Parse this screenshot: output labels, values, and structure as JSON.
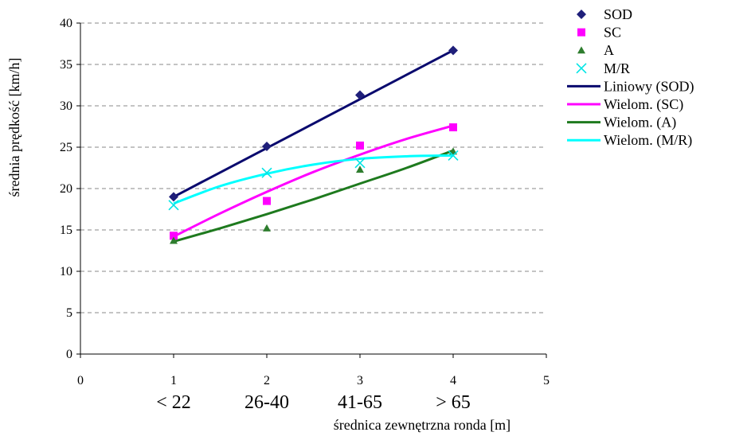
{
  "chart_data": {
    "type": "scatter",
    "xlabel": "średnica zewnętrzna ronda [m]",
    "ylabel": "średnia prędkość [km/h]",
    "xlim": [
      0,
      5
    ],
    "ylim": [
      0,
      40
    ],
    "x_ticks": [
      "0",
      "1",
      "2",
      "3",
      "4",
      "5"
    ],
    "y_ticks": [
      "0",
      "5",
      "10",
      "15",
      "20",
      "25",
      "30",
      "35",
      "40"
    ],
    "category_labels": [
      "< 22",
      "26-40",
      "41-65",
      "> 65"
    ],
    "grid": "horizontal dashed",
    "legend_position": "right",
    "series": [
      {
        "name": "SOD",
        "marker": "diamond",
        "color": "#1F1F7A",
        "x": [
          1,
          2,
          3,
          4
        ],
        "y": [
          19.0,
          25.1,
          31.3,
          36.7
        ]
      },
      {
        "name": "SC",
        "marker": "square",
        "color": "#FF00FF",
        "x": [
          1,
          2,
          3,
          4
        ],
        "y": [
          14.3,
          18.5,
          25.2,
          27.4
        ]
      },
      {
        "name": "A",
        "marker": "triangle",
        "color": "#2E7D2E",
        "x": [
          1,
          2,
          3,
          4
        ],
        "y": [
          13.7,
          15.2,
          22.3,
          24.5
        ]
      },
      {
        "name": "M/R",
        "marker": "x",
        "color": "#00E5E5",
        "x": [
          1,
          2,
          3,
          4
        ],
        "y": [
          18.0,
          21.9,
          23.1,
          24.0
        ]
      }
    ],
    "trendlines": [
      {
        "name": "Liniowy (SOD)",
        "color": "#0A0A6E",
        "type": "linear",
        "x": [
          1,
          4
        ],
        "y": [
          19.0,
          36.7
        ]
      },
      {
        "name": "Wielom. (SC)",
        "color": "#FF00FF",
        "type": "polynomial",
        "x": [
          1,
          1.5,
          2,
          2.5,
          3,
          3.5,
          4
        ],
        "y": [
          14.2,
          17.0,
          19.6,
          22.0,
          24.1,
          26.0,
          27.6
        ]
      },
      {
        "name": "Wielom. (A)",
        "color": "#1E7A1E",
        "type": "polynomial",
        "x": [
          1,
          1.5,
          2,
          2.5,
          3,
          3.5,
          4
        ],
        "y": [
          13.6,
          15.2,
          16.9,
          18.7,
          20.6,
          22.5,
          24.6
        ]
      },
      {
        "name": "Wielom. (M/R)",
        "color": "#00FFFF",
        "type": "polynomial",
        "x": [
          1,
          1.5,
          2,
          2.5,
          3,
          3.5,
          4
        ],
        "y": [
          18.2,
          20.3,
          21.8,
          22.9,
          23.6,
          23.9,
          24.0
        ]
      }
    ]
  }
}
